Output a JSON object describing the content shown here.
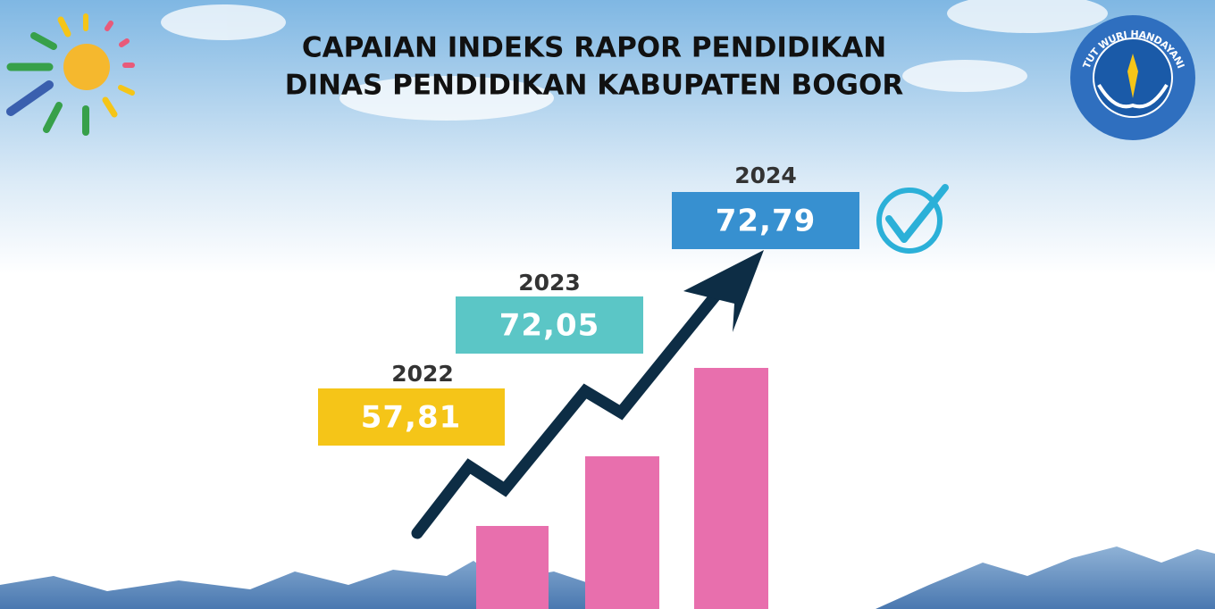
{
  "header": {
    "title_lines": [
      "CAPAIAN INDEKS RAPOR PENDIDIKAN",
      "DINAS PENDIDIKAN KABUPATEN BOGOR"
    ]
  },
  "logo": {
    "motto": "TUT WURI HANDAYANI"
  },
  "items": [
    {
      "year": "2022",
      "value": "57,81"
    },
    {
      "year": "2023",
      "value": "72,05"
    },
    {
      "year": "2024",
      "value": "72,79"
    }
  ]
}
